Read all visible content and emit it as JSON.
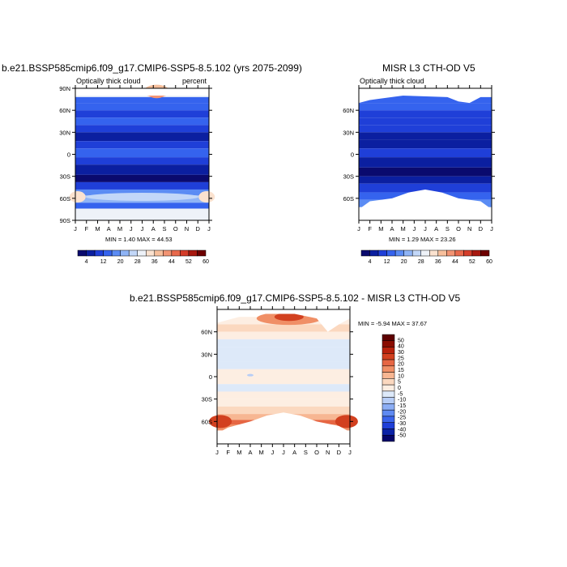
{
  "panel1": {
    "title": "b.e21.BSSP585cmip6.f09_g17.CMIP6-SSP5-8.5.102 (yrs 2075-2099)",
    "left_label": "Optically thick cloud",
    "right_label": "percent",
    "minmax": "MIN =   1.40 MAX =  44.53"
  },
  "panel2": {
    "title": "MISR L3 CTH-OD V5",
    "left_label": "Optically thick cloud",
    "minmax": "MIN =   1.29 MAX =  23.26"
  },
  "panel3": {
    "title": "b.e21.BSSP585cmip6.f09_g17.CMIP6-SSP5-8.5.102 - MISR L3 CTH-OD V5",
    "minmax": "MIN =  -5.94 MAX =  37.67"
  },
  "colors": {
    "abs_scale": [
      "#0a0a6e",
      "#0b1fa0",
      "#1f3fd8",
      "#3563ee",
      "#5b8cf4",
      "#8fb4f6",
      "#c2d7f8",
      "#eef2f8",
      "#fbe2cf",
      "#f7bf9c",
      "#f29473",
      "#e8694c",
      "#d43d2a",
      "#a8180f",
      "#6e0000"
    ],
    "diff_scale": [
      "#05056a",
      "#0b22a6",
      "#1f3fd8",
      "#3a64ec",
      "#5f8af2",
      "#8caef5",
      "#b7cdf6",
      "#dde9f9",
      "#fdeee2",
      "#fbd8bf",
      "#f7b692",
      "#f08f66",
      "#e66643",
      "#d2401f",
      "#b8210c",
      "#8a0c00",
      "#5e0000"
    ]
  },
  "chart_data": [
    {
      "type": "heatmap",
      "title": "b.e21.BSSP585cmip6.f09_g17.CMIP6-SSP5-8.5.102 (yrs 2075-2099)",
      "x_ticks": [
        "J",
        "F",
        "M",
        "A",
        "M",
        "J",
        "J",
        "A",
        "S",
        "O",
        "N",
        "D",
        "J"
      ],
      "y_ticks": [
        "90N",
        "60N",
        "30N",
        "0",
        "30S",
        "60S",
        "90S"
      ],
      "y_range": [
        -90,
        90
      ],
      "colorbar_ticks": [
        "4",
        "12",
        "20",
        "28",
        "36",
        "44",
        "52",
        "60"
      ],
      "colorbar_levels": [
        0,
        4,
        8,
        12,
        16,
        20,
        24,
        28,
        32,
        36,
        40,
        44,
        48,
        52,
        56,
        60
      ],
      "lat_profile": [
        {
          "lat": 80,
          "v": 14
        },
        {
          "lat": 70,
          "v": 12
        },
        {
          "lat": 60,
          "v": 10
        },
        {
          "lat": 50,
          "v": 8
        },
        {
          "lat": 40,
          "v": 6
        },
        {
          "lat": 30,
          "v": 4
        },
        {
          "lat": 20,
          "v": 3
        },
        {
          "lat": 10,
          "v": 5
        },
        {
          "lat": 0,
          "v": 7
        },
        {
          "lat": -10,
          "v": 5
        },
        {
          "lat": -20,
          "v": 3
        },
        {
          "lat": -30,
          "v": 3
        },
        {
          "lat": -40,
          "v": 6
        },
        {
          "lat": -50,
          "v": 12
        },
        {
          "lat": -60,
          "v": 26
        },
        {
          "lat": -70,
          "v": 16
        }
      ],
      "min": 1.4,
      "max": 44.53
    },
    {
      "type": "heatmap",
      "title": "MISR L3 CTH-OD V5",
      "x_ticks": [
        "J",
        "F",
        "M",
        "A",
        "M",
        "J",
        "J",
        "A",
        "S",
        "O",
        "N",
        "D",
        "J"
      ],
      "y_ticks": [
        "60N",
        "30N",
        "0",
        "30S",
        "60S"
      ],
      "y_range": [
        -90,
        90
      ],
      "colorbar_ticks": [
        "4",
        "12",
        "20",
        "28",
        "36",
        "44",
        "52",
        "60"
      ],
      "colorbar_levels": [
        0,
        4,
        8,
        12,
        16,
        20,
        24,
        28,
        32,
        36,
        40,
        44,
        48,
        52,
        56,
        60
      ],
      "min": 1.29,
      "max": 23.26
    },
    {
      "type": "heatmap",
      "title": "b.e21.BSSP585cmip6.f09_g17.CMIP6-SSP5-8.5.102 - MISR L3 CTH-OD V5",
      "x_ticks": [
        "J",
        "F",
        "M",
        "A",
        "M",
        "J",
        "J",
        "A",
        "S",
        "O",
        "N",
        "D",
        "J"
      ],
      "y_ticks": [
        "60N",
        "30N",
        "0",
        "30S",
        "60S"
      ],
      "y_range": [
        -90,
        90
      ],
      "colorbar_labels": [
        "50",
        "40",
        "30",
        "25",
        "20",
        "15",
        "10",
        "5",
        "0",
        "-5",
        "-10",
        "-15",
        "-20",
        "-25",
        "-30",
        "-40",
        "-50"
      ],
      "min": -5.94,
      "max": 37.67
    }
  ]
}
